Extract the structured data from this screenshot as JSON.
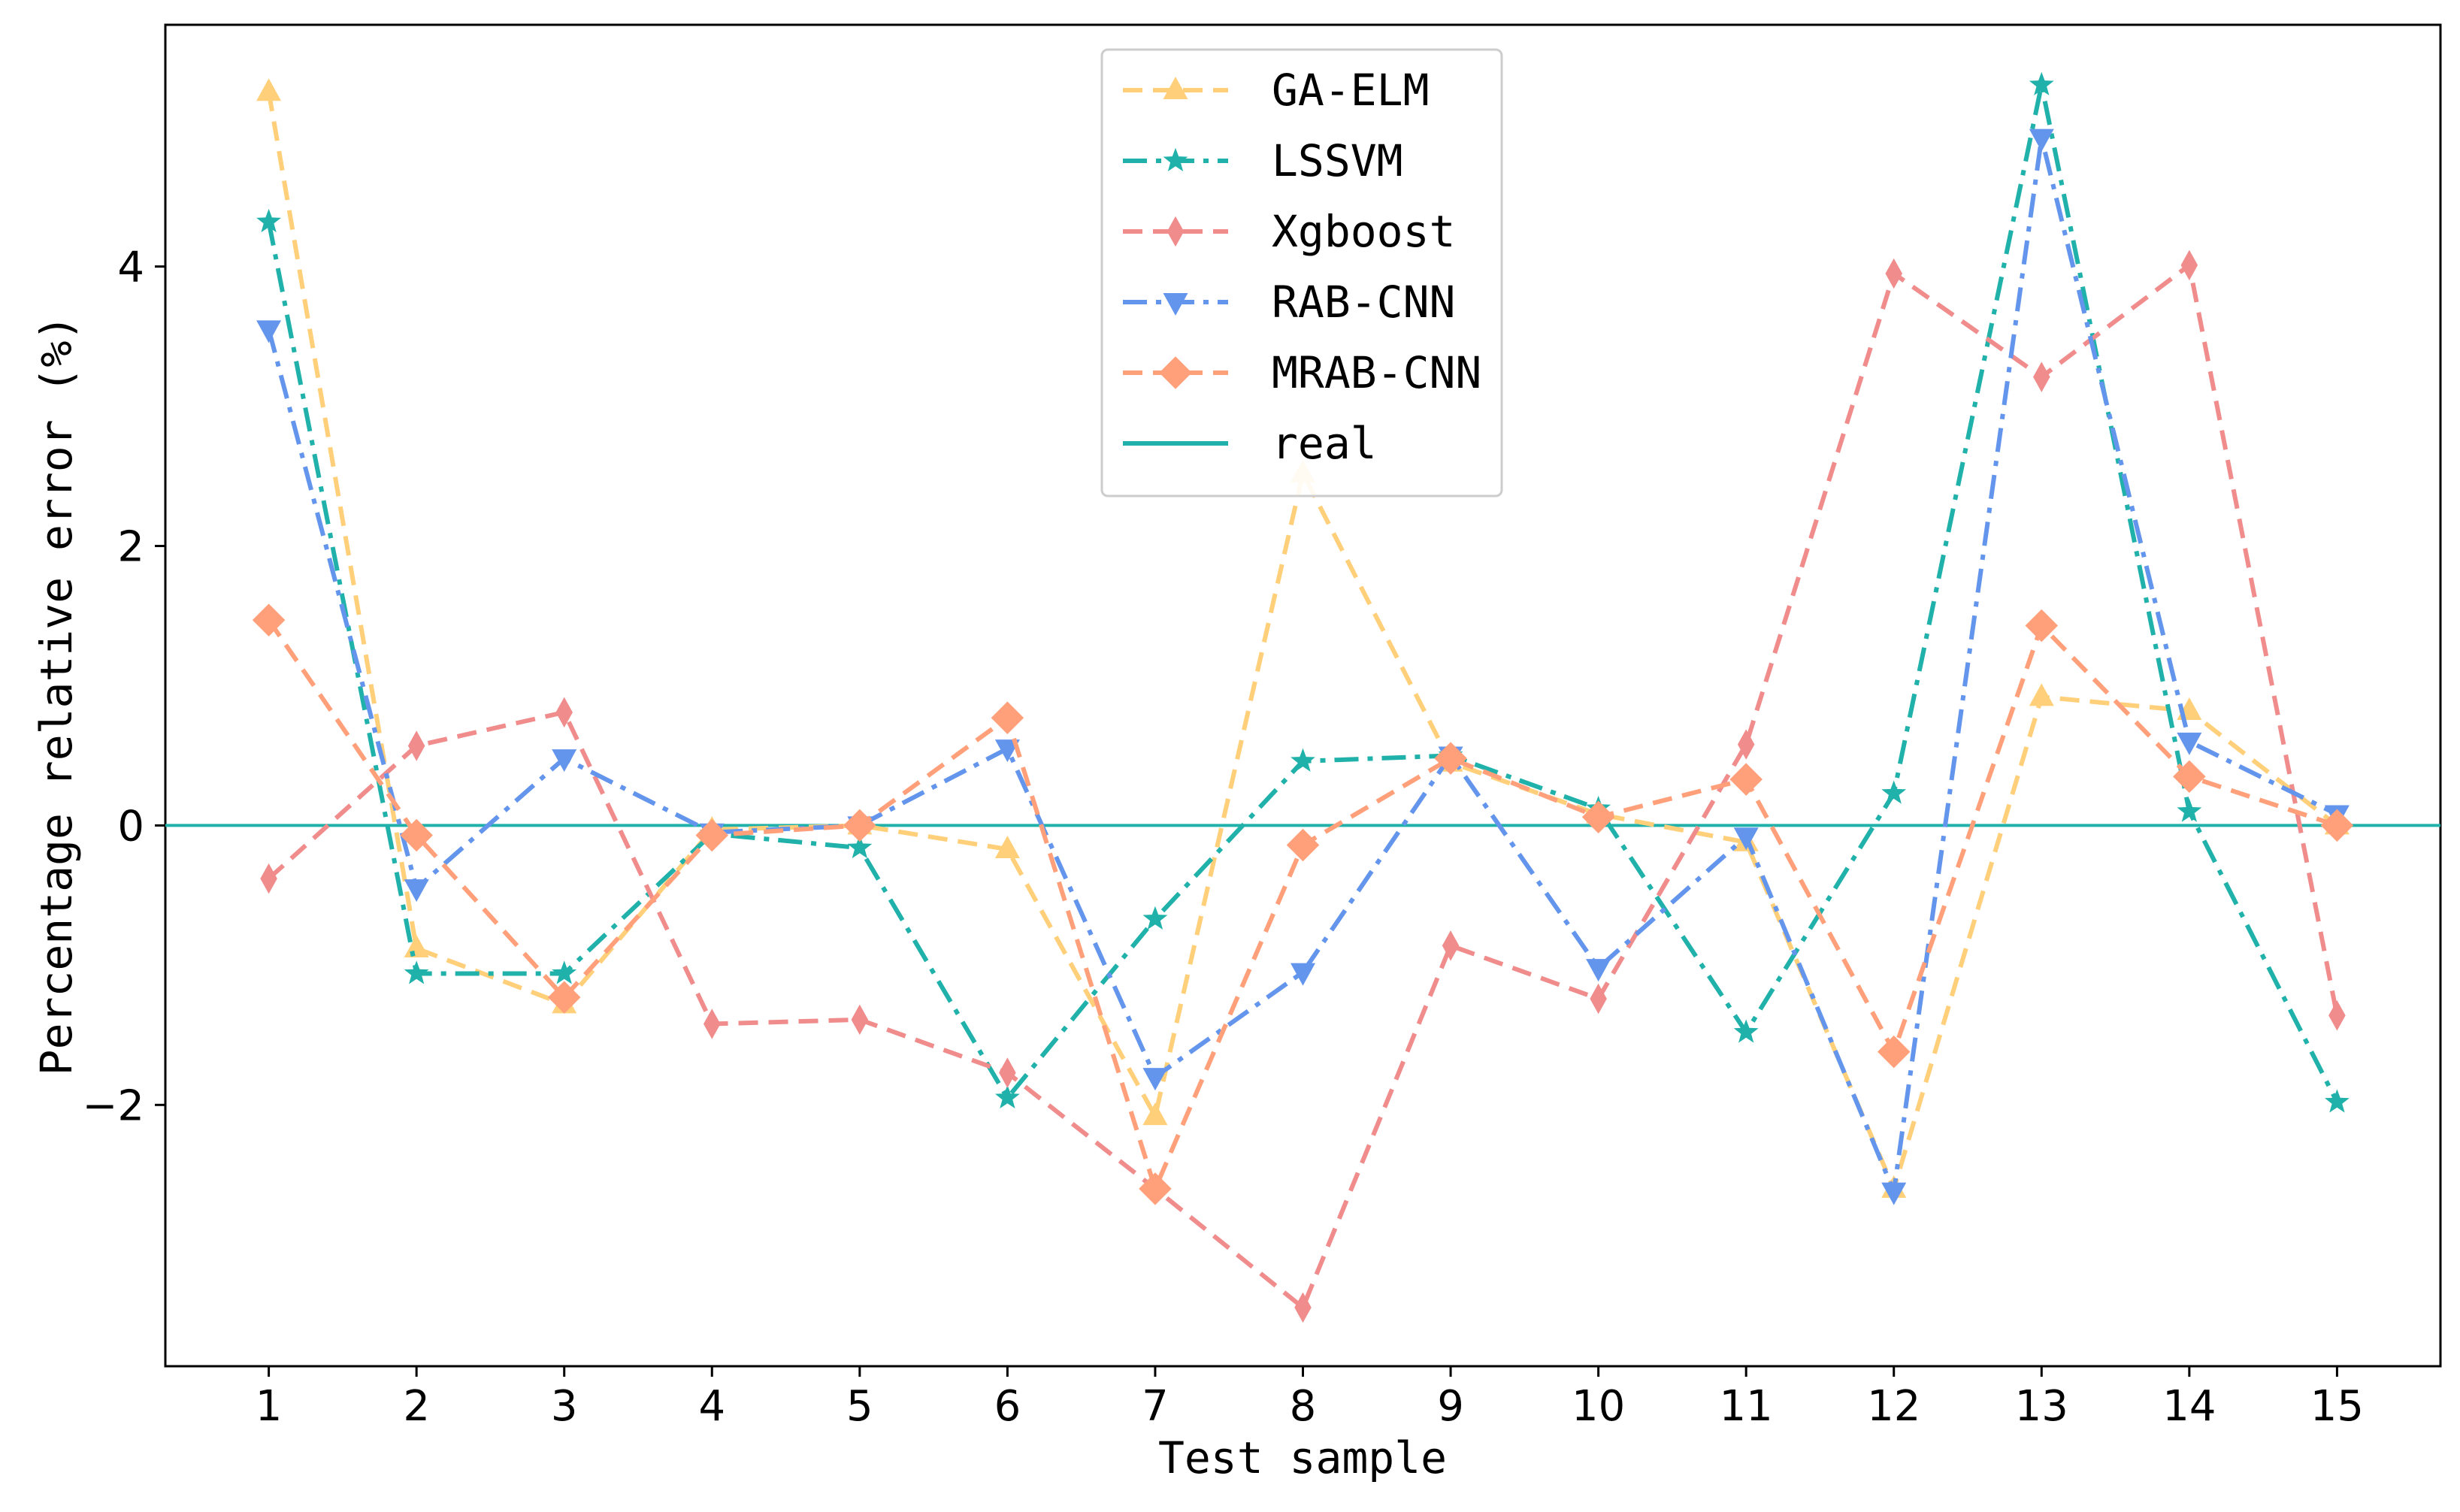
{
  "chart_data": {
    "type": "line",
    "title": "",
    "xlabel": "Test sample",
    "ylabel": "Percentage relative error (%)",
    "x": [
      1,
      2,
      3,
      4,
      5,
      6,
      7,
      8,
      9,
      10,
      11,
      12,
      13,
      14,
      15
    ],
    "x_tick_labels": [
      "1",
      "2",
      "3",
      "4",
      "5",
      "6",
      "7",
      "8",
      "9",
      "10",
      "11",
      "12",
      "13",
      "14",
      "15"
    ],
    "y_ticks": [
      -2,
      0,
      2,
      4
    ],
    "y_tick_labels": [
      "−2",
      "0",
      "2",
      "4"
    ],
    "xlim": [
      0.3,
      15.7
    ],
    "ylim": [
      -3.87,
      5.73
    ],
    "legend_position": "top-center",
    "series": [
      {
        "name": "GA-ELM",
        "color": "#FFCF7A",
        "linestyle": "dashed",
        "marker": "triangle-up",
        "values": [
          5.25,
          -0.88,
          -1.28,
          -0.03,
          0.0,
          -0.17,
          -2.08,
          2.52,
          0.45,
          0.08,
          -0.12,
          -2.6,
          0.92,
          0.82,
          0.0
        ]
      },
      {
        "name": "LSSVM",
        "color": "#20B2AA",
        "linestyle": "dashdot",
        "marker": "star",
        "values": [
          4.32,
          -1.06,
          -1.06,
          -0.06,
          -0.16,
          -1.95,
          -0.67,
          0.46,
          0.5,
          0.12,
          -1.48,
          0.23,
          5.3,
          0.1,
          -1.98
        ]
      },
      {
        "name": "Xgboost",
        "color": "#F08C8C",
        "linestyle": "dashed",
        "marker": "thin-diamond",
        "values": [
          -0.38,
          0.57,
          0.81,
          -1.42,
          -1.39,
          -1.77,
          -2.6,
          -3.45,
          -0.86,
          -1.24,
          0.58,
          3.95,
          3.21,
          4.01,
          -1.36
        ]
      },
      {
        "name": "RAB-CNN",
        "color": "#6495ED",
        "linestyle": "dashdot",
        "marker": "triangle-down",
        "values": [
          3.55,
          -0.45,
          0.48,
          -0.05,
          0.0,
          0.55,
          -1.8,
          -1.05,
          0.5,
          -1.02,
          -0.08,
          -2.62,
          4.92,
          0.6,
          0.08
        ]
      },
      {
        "name": "MRAB-CNN",
        "color": "#FFA07A",
        "linestyle": "dashed",
        "marker": "diamond",
        "values": [
          1.47,
          -0.07,
          -1.23,
          -0.07,
          0.0,
          0.77,
          -2.6,
          -0.14,
          0.48,
          0.06,
          0.33,
          -1.62,
          1.43,
          0.35,
          0.0
        ]
      }
    ],
    "reference_line": {
      "name": "real",
      "color": "#20B2AA",
      "y": 0
    }
  }
}
